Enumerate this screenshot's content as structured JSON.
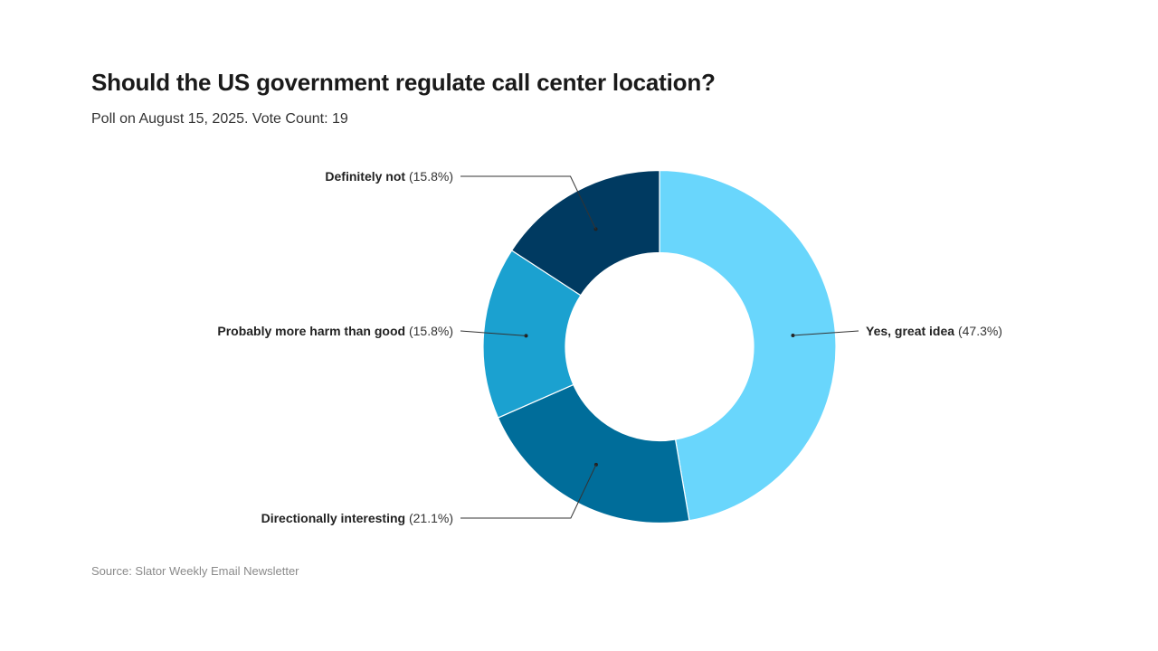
{
  "title": "Should the US government regulate call center location?",
  "subtitle": "Poll on August 15, 2025. Vote Count: 19",
  "source": "Source: Slator Weekly Email Newsletter",
  "chart_data": {
    "type": "pie",
    "donut": true,
    "title": "Should the US government regulate call center location?",
    "subtitle": "Poll on August 15, 2025. Vote Count: 19",
    "slices": [
      {
        "label": "Yes, great idea",
        "value": 47.3,
        "value_text": "(47.3%)",
        "color": "#69d6fc"
      },
      {
        "label": "Directionally interesting",
        "value": 21.1,
        "value_text": "(21.1%)",
        "color": "#006d9a"
      },
      {
        "label": "Probably more harm than good",
        "value": 15.8,
        "value_text": "(15.8%)",
        "color": "#1ba1d0"
      },
      {
        "label": "Definitely not",
        "value": 15.8,
        "value_text": "(15.8%)",
        "color": "#003a61"
      }
    ]
  }
}
